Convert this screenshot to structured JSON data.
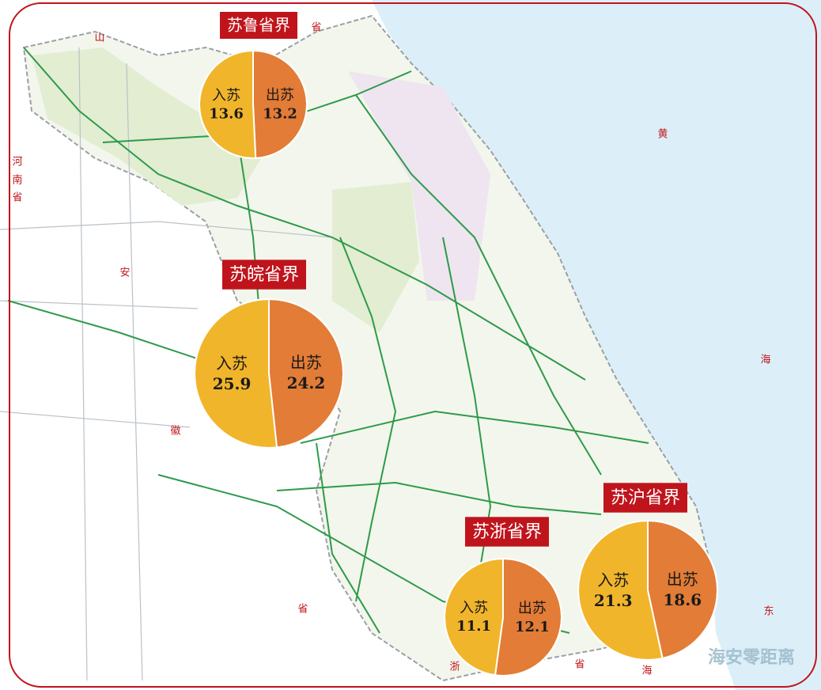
{
  "pies": [
    {
      "label": "苏鲁省界",
      "slices": [
        {
          "name": "入苏",
          "value": 13.6,
          "color": "#f1b52b"
        },
        {
          "name": "出苏",
          "value": 13.2,
          "color": "#e27c36"
        }
      ]
    },
    {
      "label": "苏皖省界",
      "slices": [
        {
          "name": "入苏",
          "value": 25.9,
          "color": "#f1b52b"
        },
        {
          "name": "出苏",
          "value": 24.2,
          "color": "#e27c36"
        }
      ]
    },
    {
      "label": "苏浙省界",
      "slices": [
        {
          "name": "入苏",
          "value": 11.1,
          "color": "#f1b52b"
        },
        {
          "name": "出苏",
          "value": 12.1,
          "color": "#e27c36"
        }
      ]
    },
    {
      "label": "苏沪省界",
      "slices": [
        {
          "name": "入苏",
          "value": 21.3,
          "color": "#f1b52b"
        },
        {
          "name": "出苏",
          "value": 18.6,
          "color": "#e27c36"
        }
      ]
    }
  ],
  "map_labels": [
    "山",
    "河",
    "南",
    "省",
    "安",
    "徽",
    "黄",
    "海",
    "东",
    "省",
    "省",
    "浙",
    "省",
    "海"
  ],
  "watermark": "海安零距离"
}
